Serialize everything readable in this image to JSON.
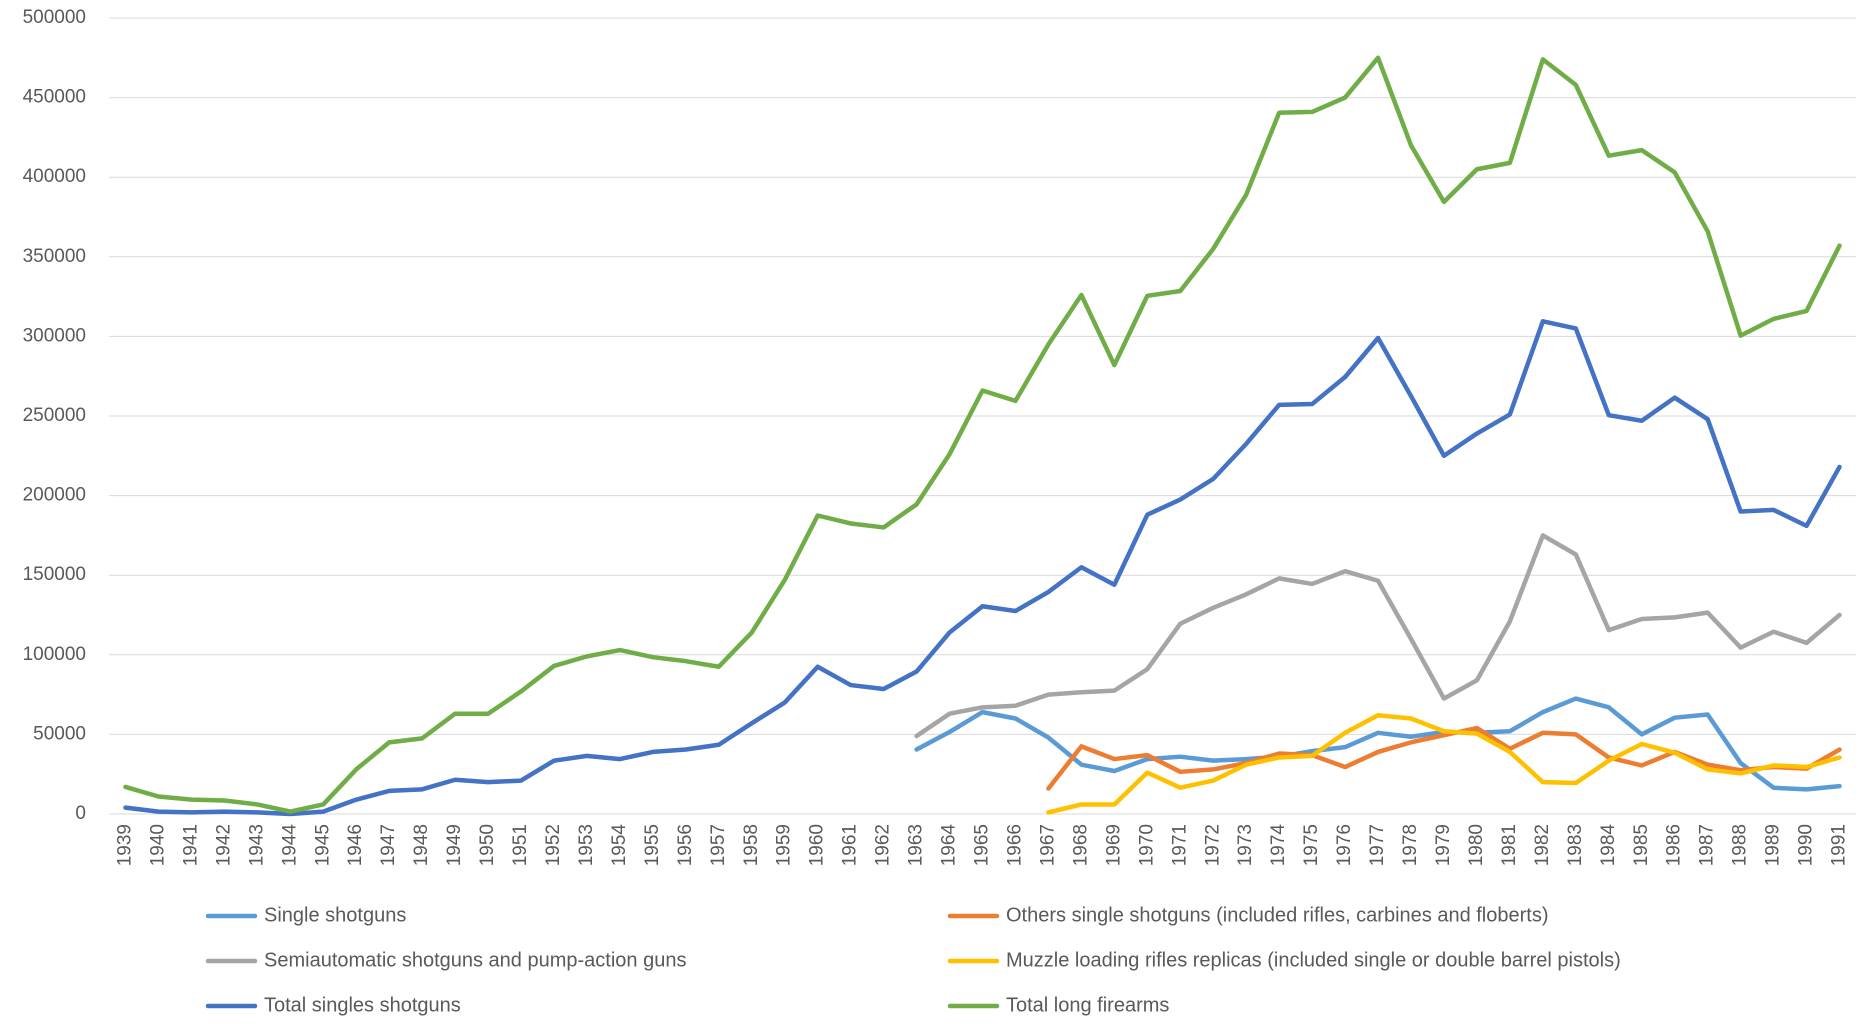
{
  "chart_data": {
    "type": "line",
    "categories": [
      "1939",
      "1940",
      "1941",
      "1942",
      "1943",
      "1944",
      "1945",
      "1946",
      "1947",
      "1948",
      "1949",
      "1950",
      "1951",
      "1952",
      "1953",
      "1954",
      "1955",
      "1956",
      "1957",
      "1958",
      "1959",
      "1960",
      "1961",
      "1962",
      "1963",
      "1964",
      "1965",
      "1966",
      "1967",
      "1968",
      "1969",
      "1970",
      "1971",
      "1972",
      "1973",
      "1974",
      "1975",
      "1976",
      "1977",
      "1978",
      "1979",
      "1980",
      "1981",
      "1982",
      "1983",
      "1984",
      "1985",
      "1986",
      "1987",
      "1988",
      "1989",
      "1990",
      "1991"
    ],
    "series": [
      {
        "name": "Single shotguns",
        "color": "#5b9bd5",
        "values": [
          null,
          null,
          null,
          null,
          null,
          null,
          null,
          null,
          null,
          null,
          null,
          null,
          null,
          null,
          null,
          null,
          null,
          null,
          null,
          null,
          null,
          null,
          null,
          null,
          40500,
          51500,
          64000,
          60000,
          48000,
          31000,
          27000,
          34500,
          36000,
          33500,
          34500,
          36000,
          39500,
          42000,
          51000,
          48500,
          51500,
          51000,
          52000,
          64000,
          72500,
          67000,
          50000,
          60500,
          62500,
          32000,
          16500,
          15500,
          17500
        ]
      },
      {
        "name": "Others single shotguns (included rifles, carbines and floberts)",
        "color": "#ed7d31",
        "values": [
          null,
          null,
          null,
          null,
          null,
          null,
          null,
          null,
          null,
          null,
          null,
          null,
          null,
          null,
          null,
          null,
          null,
          null,
          null,
          null,
          null,
          null,
          null,
          null,
          null,
          null,
          null,
          null,
          16000,
          42500,
          34500,
          37000,
          26500,
          28000,
          32000,
          38000,
          37000,
          29500,
          39000,
          45000,
          49500,
          54000,
          41000,
          51000,
          50000,
          35500,
          30500,
          39000,
          31000,
          27500,
          29500,
          28500,
          40500
        ]
      },
      {
        "name": "Semiautomatic shotguns and pump-action guns",
        "color": "#a5a5a5",
        "values": [
          null,
          null,
          null,
          null,
          null,
          null,
          null,
          null,
          null,
          null,
          null,
          null,
          null,
          null,
          null,
          null,
          null,
          null,
          null,
          null,
          null,
          null,
          null,
          null,
          49000,
          63000,
          67000,
          68000,
          75000,
          76500,
          77500,
          91000,
          119500,
          129500,
          138000,
          148000,
          144500,
          152500,
          146500,
          110000,
          72500,
          84000,
          121000,
          175000,
          163000,
          115500,
          122500,
          123500,
          126500,
          104500,
          114500,
          107500,
          125000
        ]
      },
      {
        "name": "Muzzle loading rifles replicas (included single or double barrel pistols)",
        "color": "#ffc000",
        "values": [
          null,
          null,
          null,
          null,
          null,
          null,
          null,
          null,
          null,
          null,
          null,
          null,
          null,
          null,
          null,
          null,
          null,
          null,
          null,
          null,
          null,
          null,
          null,
          null,
          null,
          null,
          null,
          null,
          1000,
          6000,
          6000,
          26000,
          16500,
          21000,
          31000,
          35500,
          36500,
          51000,
          62000,
          60000,
          52000,
          50500,
          39000,
          20000,
          19500,
          33500,
          44000,
          38500,
          28000,
          25500,
          30500,
          29500,
          35500
        ]
      },
      {
        "name": "Total singles shotguns",
        "color": "#4472c4",
        "values": [
          4000,
          1500,
          1000,
          1500,
          1000,
          0,
          1500,
          9000,
          14500,
          15500,
          21500,
          20000,
          21000,
          33500,
          36500,
          34500,
          39000,
          40500,
          43500,
          57000,
          70000,
          92500,
          81000,
          78500,
          89500,
          114000,
          130500,
          127500,
          139500,
          155000,
          144000,
          188000,
          197500,
          210500,
          232500,
          257000,
          257500,
          274500,
          299000,
          262500,
          225000,
          239000,
          251000,
          309500,
          305000,
          250500,
          247000,
          261500,
          248000,
          190000,
          191000,
          181000,
          218000
        ]
      },
      {
        "name": "Total long firearms",
        "color": "#70ad47",
        "values": [
          17000,
          11000,
          9000,
          8500,
          6000,
          1500,
          6000,
          28000,
          45000,
          47500,
          63000,
          63000,
          77000,
          93000,
          99000,
          103000,
          98500,
          96000,
          92500,
          114000,
          147000,
          187500,
          182500,
          180000,
          194500,
          226000,
          266000,
          259500,
          295000,
          326000,
          282000,
          325500,
          328500,
          355000,
          389000,
          440500,
          441000,
          450000,
          475000,
          420000,
          384500,
          405000,
          409000,
          474000,
          458000,
          413500,
          417000,
          403000,
          366000,
          300500,
          311000,
          316000,
          357000
        ]
      }
    ],
    "ylim": [
      0,
      500000
    ],
    "yticks": [
      0,
      50000,
      100000,
      150000,
      200000,
      250000,
      300000,
      350000,
      400000,
      450000,
      500000
    ],
    "grid": true
  }
}
